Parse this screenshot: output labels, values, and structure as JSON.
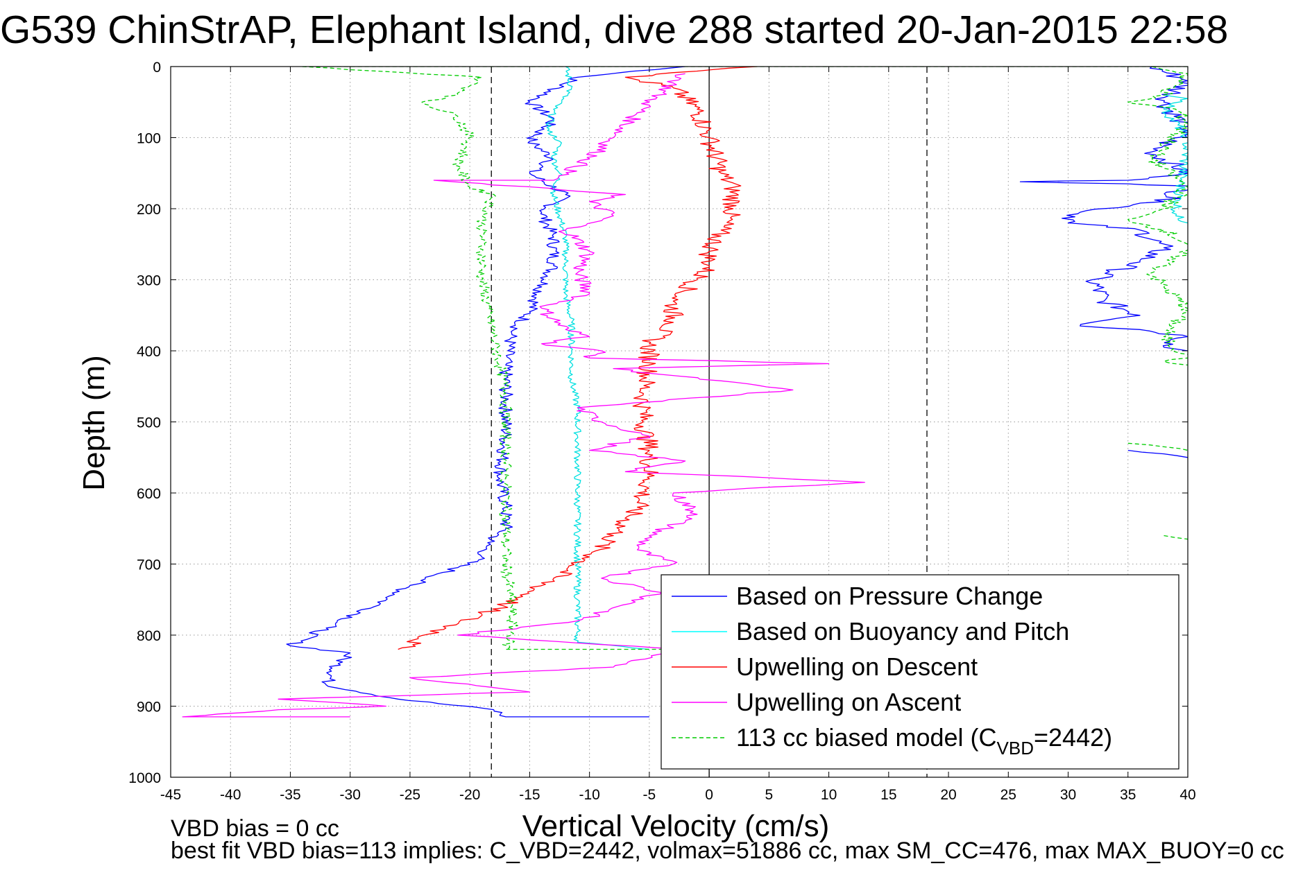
{
  "chart_data": {
    "type": "line",
    "title": "G539 ChinStrAP, Elephant Island, dive 288 started 20-Jan-2015 22:58",
    "xlabel": "Vertical Velocity (cm/s)",
    "ylabel": "Depth (m)",
    "xlim": [
      -45,
      40
    ],
    "ylim": [
      0,
      1000
    ],
    "y_reversed": true,
    "grid": true,
    "grid_style": "dotted",
    "x_ticks": [
      "-45",
      "-40",
      "-35",
      "-30",
      "-25",
      "-20",
      "-15",
      "-10",
      "-5",
      "0",
      "5",
      "10",
      "15",
      "20",
      "25",
      "30",
      "35",
      "40"
    ],
    "y_ticks": [
      "0",
      "100",
      "200",
      "300",
      "400",
      "500",
      "600",
      "700",
      "800",
      "900",
      "1000"
    ],
    "reference_lines": [
      {
        "kind": "vertical",
        "x": -18.2,
        "style": "dashed",
        "color": "#000000"
      },
      {
        "kind": "vertical",
        "x": 0,
        "style": "solid",
        "color": "#000000"
      },
      {
        "kind": "vertical",
        "x": 18.2,
        "style": "dashed",
        "color": "#000000"
      }
    ],
    "legend_position": "bottom-right",
    "legend": [
      {
        "label": "Based on Pressure Change",
        "color": "#0000ff",
        "style": "solid"
      },
      {
        "label": "Based on Buoyancy and Pitch",
        "color": "#00ffff",
        "style": "solid"
      },
      {
        "label": "Upwelling on Descent",
        "color": "#ff0000",
        "style": "solid"
      },
      {
        "label": "Upwelling on Ascent",
        "color": "#ff00ff",
        "style": "solid"
      },
      {
        "label_main": "113 cc biased model (C",
        "label_sub": "VBD",
        "label_tail": "=2442)",
        "color": "#00cc00",
        "style": "dashed"
      }
    ],
    "series": [
      {
        "color": "#0000ff",
        "style": "solid",
        "noise": 0.6,
        "points": [
          [
            -2,
            0
          ],
          [
            -11,
            15
          ],
          [
            -15,
            50
          ],
          [
            -13,
            75
          ],
          [
            -15,
            105
          ],
          [
            -13,
            130
          ],
          [
            -15,
            150
          ],
          [
            -12,
            180
          ],
          [
            -14,
            205
          ],
          [
            -13,
            240
          ],
          [
            -13,
            280
          ],
          [
            -14,
            310
          ],
          [
            -15,
            345
          ],
          [
            -16.5,
            375
          ],
          [
            -17,
            420
          ],
          [
            -17,
            470
          ],
          [
            -17,
            520
          ],
          [
            -17.5,
            580
          ],
          [
            -17,
            620
          ],
          [
            -17,
            650
          ],
          [
            -18.5,
            670
          ],
          [
            -19,
            690
          ],
          [
            -21,
            705
          ],
          [
            -25,
            730
          ],
          [
            -28,
            760
          ],
          [
            -32,
            790
          ],
          [
            -35,
            815
          ],
          [
            -30,
            825
          ],
          [
            -31,
            840
          ],
          [
            -32,
            870
          ],
          [
            -26,
            890
          ],
          [
            -18,
            905
          ],
          [
            -17,
            915
          ],
          [
            -5,
            915
          ]
        ]
      },
      {
        "color": "#0000ff",
        "style": "solid",
        "noise": 1.0,
        "points": [
          [
            37,
            0
          ],
          [
            40,
            20
          ],
          [
            38,
            50
          ],
          [
            40,
            90
          ],
          [
            37,
            120
          ],
          [
            40,
            150
          ],
          [
            35,
            160
          ],
          [
            26,
            162
          ],
          [
            35,
            165
          ],
          [
            40,
            168
          ],
          [
            38,
            190
          ],
          [
            31,
            205
          ],
          [
            30,
            220
          ],
          [
            36,
            230
          ],
          [
            38,
            255
          ],
          [
            36,
            275
          ],
          [
            32,
            300
          ],
          [
            33,
            330
          ],
          [
            36,
            350
          ],
          [
            31,
            365
          ],
          [
            36,
            370
          ],
          [
            40,
            380
          ],
          [
            38,
            395
          ],
          [
            40,
            400
          ]
        ]
      },
      {
        "color": "#0000ff",
        "style": "solid",
        "noise": 0.4,
        "points": [
          [
            35,
            540
          ],
          [
            38,
            545
          ],
          [
            40,
            550
          ]
        ]
      },
      {
        "color": "#00e0e0",
        "style": "solid",
        "noise": 0.3,
        "points": [
          [
            -12,
            0
          ],
          [
            -11.5,
            30
          ],
          [
            -13,
            60
          ],
          [
            -13.5,
            90
          ],
          [
            -12.5,
            105
          ],
          [
            -13,
            130
          ],
          [
            -12.5,
            150
          ],
          [
            -13,
            180
          ],
          [
            -12.5,
            210
          ],
          [
            -12,
            240
          ],
          [
            -12,
            280
          ],
          [
            -12,
            320
          ],
          [
            -11.5,
            360
          ],
          [
            -11.5,
            400
          ],
          [
            -11.5,
            440
          ],
          [
            -11,
            480
          ],
          [
            -11,
            520
          ],
          [
            -11,
            560
          ],
          [
            -11,
            600
          ],
          [
            -11,
            650
          ],
          [
            -11,
            700
          ],
          [
            -11,
            750
          ],
          [
            -11,
            800
          ],
          [
            -11,
            810
          ],
          [
            -5,
            820
          ]
        ]
      },
      {
        "color": "#00e0e0",
        "style": "solid",
        "noise": 0.5,
        "points": [
          [
            38,
            40
          ],
          [
            40,
            45
          ],
          [
            38,
            60
          ],
          [
            40,
            100
          ],
          [
            39,
            210
          ],
          [
            40,
            220
          ]
        ]
      },
      {
        "color": "#ff0000",
        "style": "solid",
        "noise": 0.9,
        "points": [
          [
            4,
            0
          ],
          [
            -7,
            15
          ],
          [
            -3,
            30
          ],
          [
            -1,
            60
          ],
          [
            0,
            100
          ],
          [
            1,
            150
          ],
          [
            2,
            170
          ],
          [
            2,
            200
          ],
          [
            1,
            230
          ],
          [
            0,
            260
          ],
          [
            0,
            280
          ],
          [
            -1,
            300
          ],
          [
            -3,
            330
          ],
          [
            -3,
            360
          ],
          [
            -5,
            390
          ],
          [
            -5,
            420
          ],
          [
            -5.5,
            460
          ],
          [
            -5.5,
            500
          ],
          [
            -5,
            540
          ],
          [
            -5,
            580
          ],
          [
            -6,
            620
          ],
          [
            -8,
            660
          ],
          [
            -10,
            690
          ],
          [
            -13,
            720
          ],
          [
            -16,
            750
          ],
          [
            -19,
            770
          ],
          [
            -22,
            790
          ],
          [
            -26,
            820
          ]
        ]
      },
      {
        "color": "#ff00ff",
        "style": "solid",
        "noise": 0.7,
        "points": [
          [
            -2,
            10
          ],
          [
            -5,
            50
          ],
          [
            -8,
            100
          ],
          [
            -10,
            130
          ],
          [
            -13,
            160
          ],
          [
            -23,
            160
          ],
          [
            -7,
            180
          ],
          [
            -10,
            190
          ],
          [
            -8,
            210
          ],
          [
            -12,
            230
          ],
          [
            -10,
            260
          ],
          [
            -11,
            290
          ],
          [
            -10,
            320
          ],
          [
            -14,
            340
          ],
          [
            -12,
            370
          ],
          [
            -10,
            380
          ],
          [
            -14,
            390
          ],
          [
            -9,
            400
          ],
          [
            -10,
            410
          ],
          [
            10,
            418
          ],
          [
            -8,
            425
          ],
          [
            7,
            455
          ],
          [
            -11,
            480
          ],
          [
            -9,
            500
          ],
          [
            -5,
            520
          ],
          [
            -10,
            540
          ],
          [
            -2,
            555
          ],
          [
            -7,
            570
          ],
          [
            13,
            585
          ],
          [
            -3,
            600
          ],
          [
            -1,
            630
          ],
          [
            -5,
            660
          ],
          [
            -6,
            680
          ],
          [
            -3,
            700
          ],
          [
            -9,
            720
          ],
          [
            -4,
            740
          ],
          [
            -11,
            780
          ],
          [
            -21,
            800
          ],
          [
            -2,
            820
          ],
          [
            -8,
            845
          ],
          [
            -25,
            860
          ],
          [
            -15,
            880
          ],
          [
            -36,
            890
          ],
          [
            -27,
            900
          ],
          [
            -36,
            905
          ],
          [
            -44,
            915
          ],
          [
            -30,
            915
          ]
        ]
      },
      {
        "color": "#00cc00",
        "style": "dashed",
        "noise": 0.5,
        "points": [
          [
            -34,
            0
          ],
          [
            -19,
            15
          ],
          [
            -21,
            40
          ],
          [
            -24,
            50
          ],
          [
            -21,
            70
          ],
          [
            -20,
            100
          ],
          [
            -21,
            140
          ],
          [
            -20,
            170
          ],
          [
            -18,
            180
          ],
          [
            -19,
            220
          ],
          [
            -19,
            260
          ],
          [
            -19,
            300
          ],
          [
            -18.5,
            340
          ],
          [
            -18,
            380
          ],
          [
            -17.5,
            420
          ],
          [
            -17,
            460
          ],
          [
            -17,
            500
          ],
          [
            -17,
            540
          ],
          [
            -17,
            580
          ],
          [
            -17,
            620
          ],
          [
            -17,
            660
          ],
          [
            -17,
            700
          ],
          [
            -16.5,
            760
          ],
          [
            -16.5,
            800
          ],
          [
            -17,
            820
          ],
          [
            -3,
            820
          ]
        ]
      },
      {
        "color": "#00cc00",
        "style": "dashed",
        "noise": 0.5,
        "points": [
          [
            -34,
            0
          ],
          [
            40,
            0
          ]
        ]
      },
      {
        "color": "#00cc00",
        "style": "dashed",
        "noise": 0.7,
        "points": [
          [
            37,
            0
          ],
          [
            40,
            10
          ],
          [
            38,
            40
          ],
          [
            35,
            50
          ],
          [
            39,
            60
          ],
          [
            40,
            80
          ],
          [
            37,
            130
          ],
          [
            40,
            170
          ],
          [
            38,
            200
          ],
          [
            35,
            215
          ],
          [
            38,
            230
          ],
          [
            40,
            250
          ],
          [
            39,
            270
          ],
          [
            37,
            290
          ],
          [
            38,
            310
          ],
          [
            40,
            340
          ],
          [
            38,
            380
          ],
          [
            40,
            410
          ],
          [
            38,
            415
          ],
          [
            40,
            420
          ]
        ]
      },
      {
        "color": "#00cc00",
        "style": "dashed",
        "noise": 0.4,
        "points": [
          [
            35,
            530
          ],
          [
            38,
            535
          ],
          [
            40,
            540
          ]
        ]
      },
      {
        "color": "#00cc00",
        "style": "dashed",
        "noise": 0.3,
        "points": [
          [
            38,
            660
          ],
          [
            40,
            665
          ]
        ]
      }
    ]
  },
  "footer": {
    "line1": "VBD bias = 0 cc",
    "line2": "best fit VBD bias=113 implies: C_VBD=2442, volmax=51886 cc, max SM_CC=476, max MAX_BUOY=0 cc"
  }
}
